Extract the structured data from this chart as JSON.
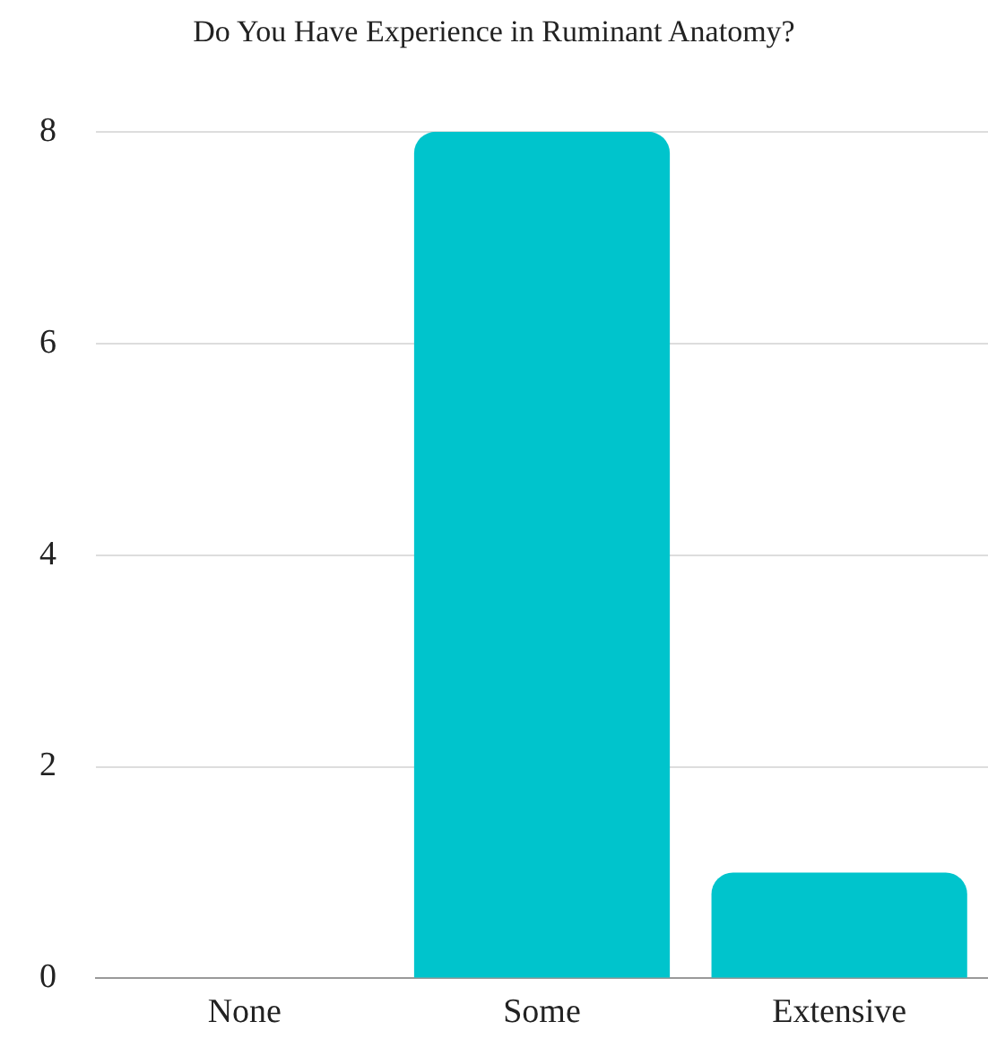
{
  "chart_data": {
    "type": "bar",
    "title": "Do You Have Experience in Ruminant Anatomy?",
    "categories": [
      "None",
      "Some",
      "Extensive"
    ],
    "values": [
      0,
      8,
      1
    ],
    "color": "#00c4cc",
    "ylim": [
      0,
      8
    ],
    "yticks": [
      0,
      2,
      4,
      6,
      8
    ],
    "grid": "y",
    "legend": false
  }
}
